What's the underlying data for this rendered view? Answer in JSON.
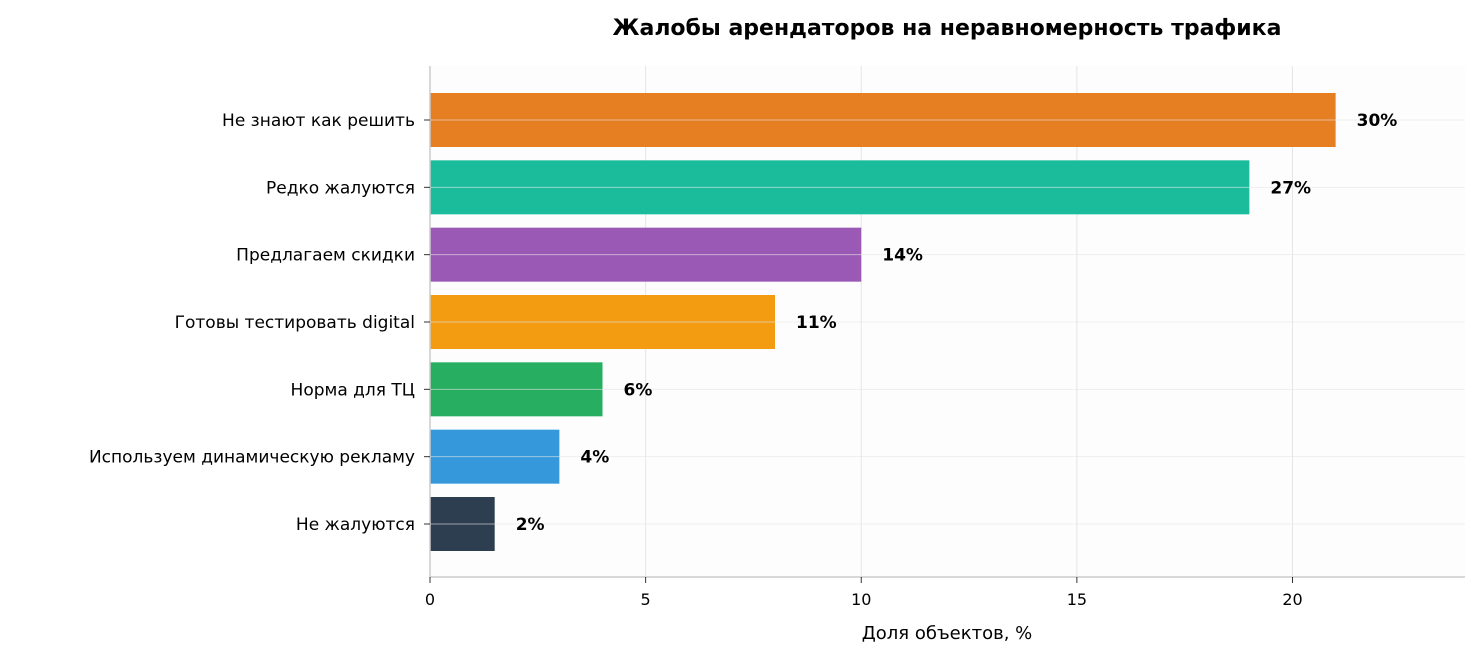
{
  "chart_data": {
    "type": "bar",
    "orientation": "horizontal",
    "title": "Жалобы арендаторов на неравномерность трафика",
    "xlabel": "Доля объектов, %",
    "ylabel": "",
    "xlim": [
      0,
      24
    ],
    "xticks": [
      0,
      5,
      10,
      15,
      20
    ],
    "grid": true,
    "categories": [
      "Не знают как решить",
      "Редко жалуются",
      "Предлагаем скидки",
      "Готовы тестировать digital",
      "Норма для ТЦ",
      "Используем динамическую рекламу",
      "Не жалуются"
    ],
    "values": [
      21,
      19,
      10,
      8,
      4,
      3,
      1.5
    ],
    "labels": [
      "30%",
      "27%",
      "14%",
      "11%",
      "6%",
      "4%",
      "2%"
    ],
    "colors": [
      "#e67e22",
      "#1abc9c",
      "#9b59b6",
      "#f39c12",
      "#27ae60",
      "#3498db",
      "#2c3e50"
    ]
  }
}
